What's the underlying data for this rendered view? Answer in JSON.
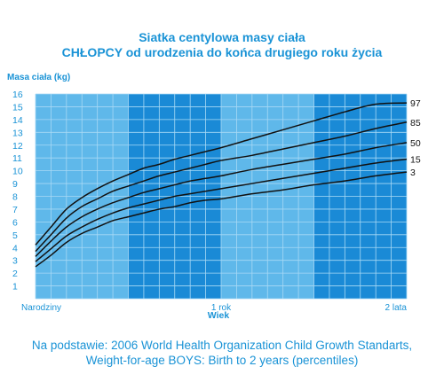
{
  "chart_data": {
    "type": "line",
    "title": "Siatka centylowa masy ciała",
    "subtitle": "CHŁOPCY od urodzenia do końca drugiego roku życia",
    "ylabel": "Masa ciała (kg)",
    "xlabel": "Wiek",
    "x_unit": "months",
    "xlim": [
      0,
      24
    ],
    "ylim": [
      0,
      16
    ],
    "y_ticks": [
      1,
      2,
      3,
      4,
      5,
      6,
      7,
      8,
      9,
      10,
      11,
      12,
      13,
      14,
      15,
      16
    ],
    "x_ticks": [
      {
        "value": 0,
        "label": "Narodziny"
      },
      {
        "value": 12,
        "label": "1 rok"
      },
      {
        "value": 24,
        "label": "2 lata"
      }
    ],
    "grid": true,
    "band_colors": {
      "light": "#5fb8ea",
      "dark": "#1a8ad6",
      "grid": "#a8d9f5",
      "line": "#111111"
    },
    "x": [
      0,
      1,
      2,
      3,
      4,
      5,
      6,
      7,
      8,
      9,
      10,
      11,
      12,
      14,
      16,
      18,
      20,
      22,
      24
    ],
    "series": [
      {
        "name": "3",
        "values": [
          2.5,
          3.4,
          4.4,
          5.1,
          5.6,
          6.1,
          6.4,
          6.7,
          7.0,
          7.2,
          7.5,
          7.7,
          7.8,
          8.2,
          8.5,
          8.9,
          9.2,
          9.6,
          9.9
        ]
      },
      {
        "name": "15",
        "values": [
          2.9,
          3.9,
          4.9,
          5.6,
          6.2,
          6.7,
          7.1,
          7.4,
          7.7,
          8.0,
          8.2,
          8.4,
          8.6,
          9.0,
          9.4,
          9.8,
          10.2,
          10.6,
          10.9
        ]
      },
      {
        "name": "50",
        "values": [
          3.3,
          4.5,
          5.6,
          6.4,
          7.0,
          7.5,
          7.9,
          8.3,
          8.6,
          8.9,
          9.2,
          9.4,
          9.6,
          10.1,
          10.5,
          10.9,
          11.3,
          11.8,
          12.2
        ]
      },
      {
        "name": "85",
        "values": [
          3.7,
          5.0,
          6.3,
          7.2,
          7.8,
          8.4,
          8.8,
          9.2,
          9.6,
          9.9,
          10.2,
          10.5,
          10.8,
          11.2,
          11.7,
          12.2,
          12.7,
          13.3,
          13.8
        ]
      },
      {
        "name": "97",
        "values": [
          4.2,
          5.6,
          7.0,
          7.9,
          8.6,
          9.2,
          9.7,
          10.2,
          10.5,
          10.9,
          11.2,
          11.5,
          11.8,
          12.5,
          13.2,
          13.9,
          14.6,
          15.2,
          15.3
        ]
      }
    ]
  },
  "caption": {
    "line1": "Na podstawie: 2006 World Health Organization Child Growth Standarts,",
    "line2": "Weight-for-age BOYS: Birth to 2 years (percentiles)"
  }
}
